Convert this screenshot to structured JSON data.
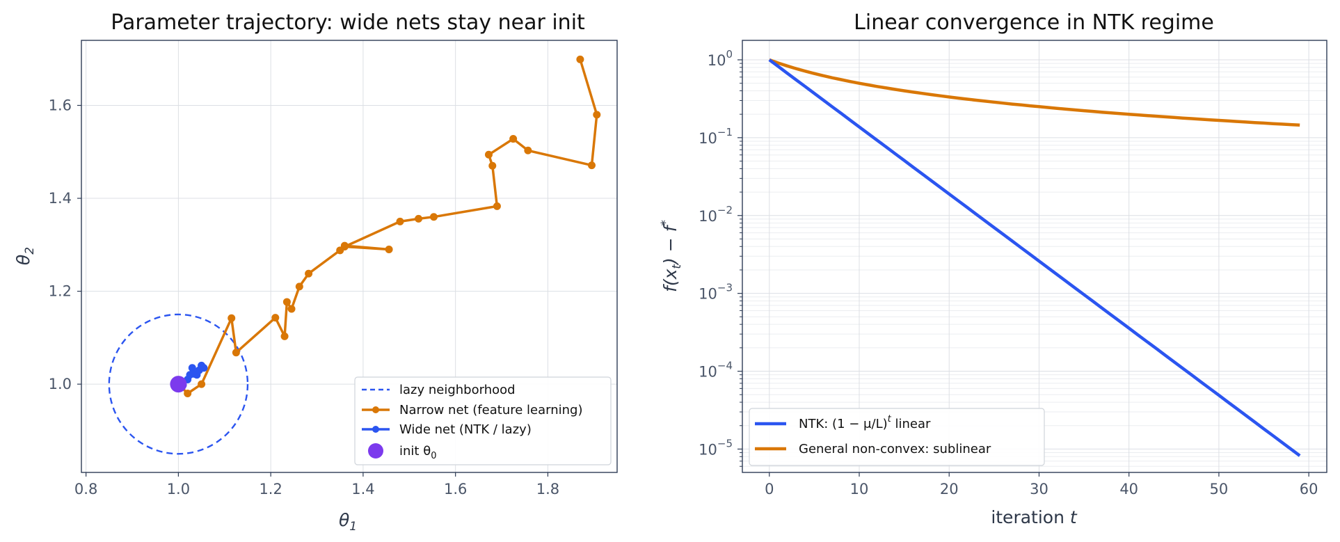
{
  "chart_data": [
    {
      "type": "line",
      "title": "Parameter trajectory: wide nets stay near init",
      "xlabel": "θ1",
      "ylabel": "θ2",
      "xlim": [
        0.79,
        1.95
      ],
      "ylim": [
        0.81,
        1.74
      ],
      "x_ticks": [
        "0.8",
        "1.0",
        "1.2",
        "1.4",
        "1.6",
        "1.8"
      ],
      "y_ticks": [
        "1.0",
        "1.2",
        "1.4",
        "1.6"
      ],
      "grid": true,
      "legend_position": "lower-right",
      "neighborhood": {
        "name": "lazy neighborhood",
        "center": [
          1.0,
          1.0
        ],
        "radius": 0.15,
        "color": "#2b55f0"
      },
      "series": [
        {
          "name": "Narrow net (feature learning)",
          "color": "#d97706",
          "x": [
            1.0,
            1.02,
            1.05,
            1.115,
            1.125,
            1.21,
            1.23,
            1.235,
            1.245,
            1.262,
            1.282,
            1.35,
            1.36,
            1.456,
            1.36,
            1.48,
            1.52,
            1.553,
            1.69,
            1.68,
            1.672,
            1.725,
            1.757,
            1.895,
            1.906,
            1.87
          ],
          "y": [
            1.0,
            0.98,
            1.0,
            1.142,
            1.068,
            1.143,
            1.103,
            1.177,
            1.162,
            1.21,
            1.238,
            1.288,
            1.298,
            1.29,
            1.296,
            1.35,
            1.356,
            1.36,
            1.383,
            1.47,
            1.494,
            1.528,
            1.503,
            1.471,
            1.58,
            1.699
          ]
        },
        {
          "name": "Wide net (NTK / lazy)",
          "color": "#2b55f0",
          "x": [
            1.0,
            1.01,
            1.02,
            1.025,
            1.03,
            1.04,
            1.035,
            1.045,
            1.05,
            1.055
          ],
          "y": [
            1.0,
            0.998,
            1.01,
            1.02,
            1.035,
            1.02,
            1.022,
            1.03,
            1.04,
            1.035
          ]
        }
      ],
      "init_point": {
        "name": "init θ0",
        "x": 1.0,
        "y": 1.0,
        "color": "#7c3aed"
      }
    },
    {
      "type": "line",
      "title": "Linear convergence in NTK regime",
      "xlabel": "iteration t",
      "ylabel": "f(xt) − f*",
      "xlim": [
        -3,
        62
      ],
      "yscale": "log",
      "ylim_log10": [
        -5.3,
        0.25
      ],
      "x_ticks": [
        "0",
        "10",
        "20",
        "30",
        "40",
        "50",
        "60"
      ],
      "y_tick_exponents": [
        "0",
        "−1",
        "−2",
        "−3",
        "−4",
        "−5"
      ],
      "grid": true,
      "legend_position": "lower-left",
      "series": [
        {
          "name": "NTK: (1 − μ/L)t linear",
          "color": "#2b55f0",
          "formula": "(1-0.18)^t",
          "x_range": [
            0,
            59
          ]
        },
        {
          "name": "General non-convex: sublinear",
          "color": "#d97706",
          "formula": "1/(1+0.1t)",
          "x_range": [
            0,
            59
          ]
        }
      ]
    }
  ],
  "labels": {
    "left_title": "Parameter trajectory: wide nets stay near init",
    "right_title": "Linear convergence in NTK regime",
    "leg_lazy": "lazy neighborhood",
    "leg_narrow": "Narrow net (feature learning)",
    "leg_wide": "Wide net (NTK / lazy)",
    "leg_init": "init θ",
    "leg_init_sub": "0",
    "leg_ntk_a": "NTK: (1 − μ/L)",
    "leg_ntk_sup": "t",
    "leg_ntk_b": " linear",
    "leg_general": "General non-convex: sublinear",
    "left_xlabel": "θ",
    "left_xlabel_sub": "1",
    "left_ylabel": "θ",
    "left_ylabel_sub": "2",
    "right_xlabel": "iteration ",
    "right_xlabel_var": "t",
    "right_ylabel_a": "f(x",
    "right_ylabel_sub": "t",
    "right_ylabel_b": ") − f",
    "right_ylabel_sup": "*"
  }
}
